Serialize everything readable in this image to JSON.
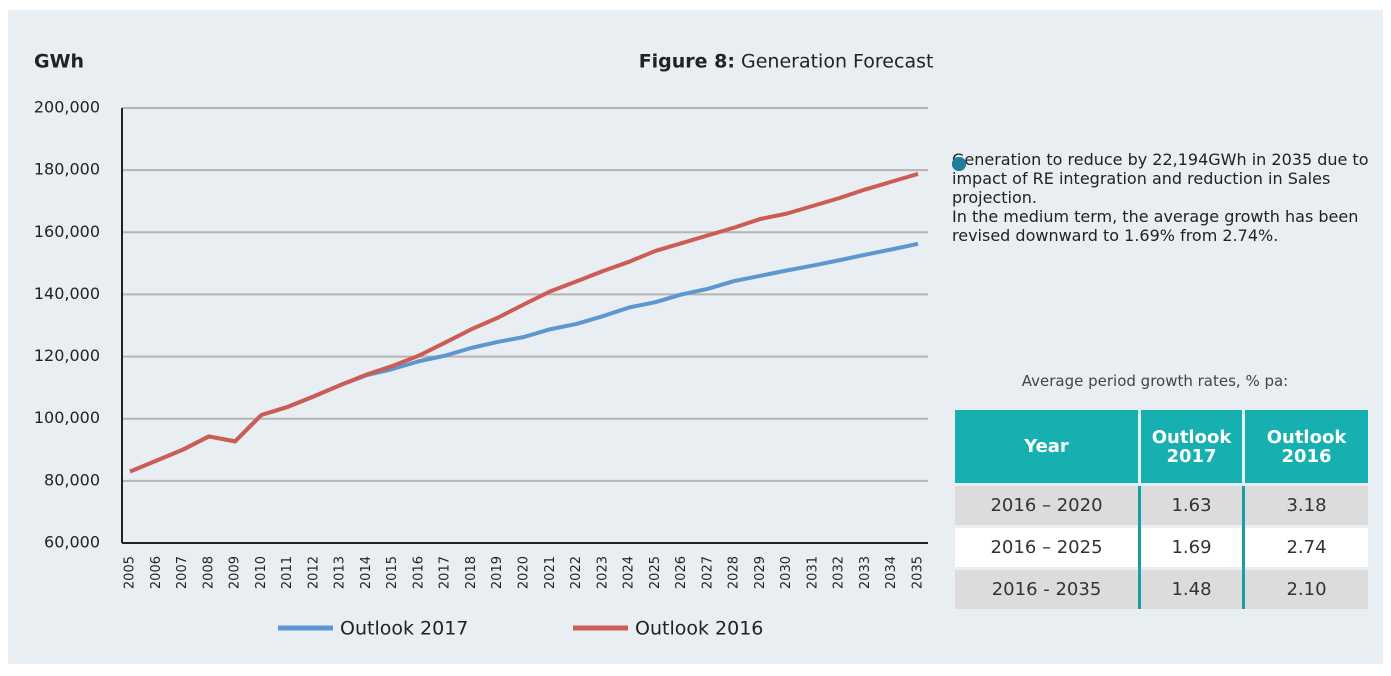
{
  "chart_data": {
    "type": "line",
    "title_prefix": "Figure 8:",
    "title": "Generation Forecast",
    "ylabel": "GWh",
    "categories": [
      "2005",
      "2006",
      "2007",
      "2008",
      "2009",
      "2010",
      "2011",
      "2012",
      "2013",
      "2014",
      "2015",
      "2016",
      "2017",
      "2018",
      "2019",
      "2020",
      "2021",
      "2022",
      "2023",
      "2024",
      "2025",
      "2026",
      "2027",
      "2028",
      "2029",
      "2030",
      "2031",
      "2032",
      "2033",
      "2034",
      "2035"
    ],
    "series": [
      {
        "name": "Outlook 2017",
        "color": "#5e96cf",
        "values": [
          83000,
          86500,
          90000,
          94300,
          92700,
          101200,
          103800,
          107200,
          110800,
          114000,
          116000,
          118500,
          120300,
          122800,
          124700,
          126300,
          128800,
          130500,
          133000,
          135800,
          137500,
          140000,
          141800,
          144300,
          146000,
          147700,
          149300,
          151000,
          152800,
          154500,
          156300
        ]
      },
      {
        "name": "Outlook 2016",
        "color": "#cd5c55",
        "values": [
          83000,
          86500,
          90000,
          94300,
          92700,
          101200,
          103800,
          107200,
          110800,
          114200,
          117000,
          120300,
          124500,
          128800,
          132500,
          136800,
          141000,
          144200,
          147500,
          150500,
          154000,
          156500,
          159000,
          161500,
          164300,
          166000,
          168500,
          171000,
          173800,
          176300,
          178800
        ]
      }
    ],
    "ylim": [
      60000,
      200000
    ],
    "yticks": [
      {
        "value": 60000,
        "label": "60,000"
      },
      {
        "value": 80000,
        "label": "80,000"
      },
      {
        "value": 100000,
        "label": "100,000"
      },
      {
        "value": 120000,
        "label": "120,000"
      },
      {
        "value": 140000,
        "label": "140,000"
      },
      {
        "value": 160000,
        "label": "160,000"
      },
      {
        "value": 180000,
        "label": "180,000"
      },
      {
        "value": 200000,
        "label": "200,000"
      }
    ],
    "grid": true,
    "legend": "bottom"
  },
  "notes": [
    "Generation to reduce by 22,194GWh in 2035 due to impact of RE integration and reduction in Sales projection.",
    "In the medium term, the average growth has been revised downward to 1.69% from 2.74%."
  ],
  "table": {
    "caption": "Average period growth rates, % pa:",
    "header": [
      "Year",
      "Outlook 2017",
      "Outlook 2016"
    ],
    "rows": [
      [
        "2016 – 2020",
        "1.63",
        "3.18"
      ],
      [
        "2016 – 2025",
        "1.69",
        "2.74"
      ],
      [
        "2016 - 2035",
        "1.48",
        "2.10"
      ]
    ]
  }
}
